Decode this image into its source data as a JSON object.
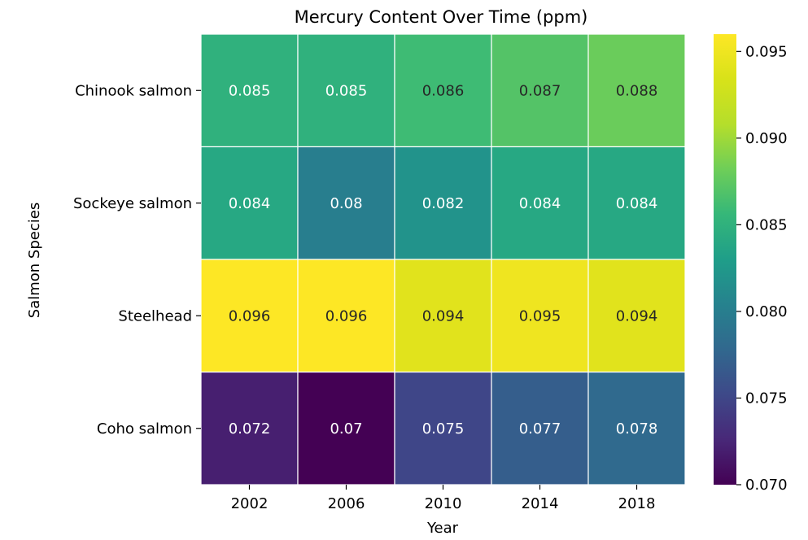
{
  "chart_data": {
    "type": "heatmap",
    "title": "Mercury Content  Over Time (ppm)",
    "xlabel": "Year",
    "ylabel": "Salmon Species",
    "x_categories": [
      "2002",
      "2006",
      "2010",
      "2014",
      "2018"
    ],
    "y_categories": [
      "Chinook salmon",
      "Sockeye salmon",
      "Steelhead",
      "Coho salmon"
    ],
    "values": [
      [
        0.085,
        0.085,
        0.086,
        0.087,
        0.088
      ],
      [
        0.084,
        0.08,
        0.082,
        0.084,
        0.084
      ],
      [
        0.096,
        0.096,
        0.094,
        0.095,
        0.094
      ],
      [
        0.072,
        0.07,
        0.075,
        0.077,
        0.078
      ]
    ],
    "cell_labels": [
      [
        "0.085",
        "0.085",
        "0.086",
        "0.087",
        "0.088"
      ],
      [
        "0.084",
        "0.08",
        "0.082",
        "0.084",
        "0.084"
      ],
      [
        "0.096",
        "0.096",
        "0.094",
        "0.095",
        "0.094"
      ],
      [
        "0.072",
        "0.07",
        "0.075",
        "0.077",
        "0.078"
      ]
    ],
    "colormap": "viridis",
    "colorbar": {
      "range": [
        0.07,
        0.096
      ],
      "ticks": [
        0.07,
        0.075,
        0.08,
        0.085,
        0.09,
        0.095
      ],
      "tick_labels": [
        "0.070",
        "0.075",
        "0.080",
        "0.085",
        "0.090",
        "0.095"
      ]
    },
    "grid_line_color": "#ffffff",
    "annotation_dark_color": "#262626",
    "annotation_light_color": "#ffffff"
  }
}
